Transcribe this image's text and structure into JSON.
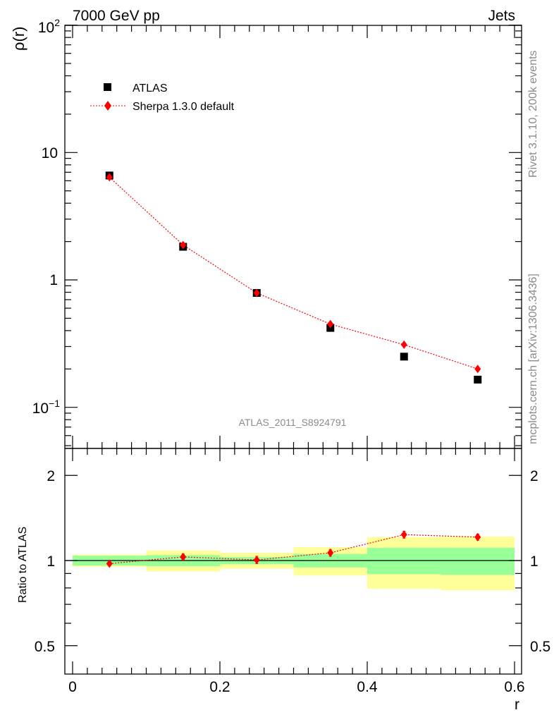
{
  "header": {
    "left": "7000 GeV pp",
    "right": "Jets"
  },
  "side_text": {
    "rivet": "Rivet 3.1.10,  200k events",
    "mcplots": "mcplots.cern.ch [arXiv:1306.3436]"
  },
  "watermark": "ATLAS_2011_S8924791",
  "colors": {
    "data": "#000000",
    "mc": "#ff0000",
    "band_inner": "#99ff99",
    "band_outer": "#ffff99"
  },
  "chart_data": [
    {
      "type": "scatter",
      "panel": "main",
      "ylabel": "ρ(r)",
      "yscale": "log",
      "ylim": [
        0.05,
        100
      ],
      "xlim": [
        -0.01,
        0.6
      ],
      "y_tick_labels": [
        {
          "value": 0.1,
          "label": "10",
          "sup": "−1"
        },
        {
          "value": 1,
          "label": "1",
          "sup": ""
        },
        {
          "value": 10,
          "label": "10",
          "sup": ""
        },
        {
          "value": 100,
          "label": "10",
          "sup": "2"
        }
      ],
      "legend": {
        "position": "top-left",
        "entries": [
          "ATLAS",
          "Sherpa 1.3.0 default"
        ]
      },
      "series": [
        {
          "name": "ATLAS",
          "style": "square",
          "x": [
            0.05,
            0.15,
            0.25,
            0.35,
            0.45,
            0.55
          ],
          "values": [
            6.6,
            1.82,
            0.79,
            0.42,
            0.25,
            0.165
          ]
        },
        {
          "name": "Sherpa 1.3.0 default",
          "style": "diamond-dotted-line",
          "x": [
            0.05,
            0.15,
            0.25,
            0.35,
            0.45,
            0.55
          ],
          "values": [
            6.4,
            1.88,
            0.79,
            0.45,
            0.31,
            0.2
          ]
        }
      ]
    },
    {
      "type": "line",
      "panel": "ratio",
      "ylabel": "Ratio to ATLAS",
      "xlabel": "r",
      "yscale": "log",
      "ylim": [
        0.43,
        2.35
      ],
      "xlim": [
        -0.01,
        0.6
      ],
      "x_ticks": [
        0,
        0.2,
        0.4,
        0.6
      ],
      "x_tick_labels": [
        "0",
        "0.2",
        "0.4",
        "0.6"
      ],
      "y_ticks": [
        0.5,
        1,
        2
      ],
      "y_tick_labels": [
        "0.5",
        "1",
        "2"
      ],
      "bins": [
        [
          0.0,
          0.1
        ],
        [
          0.1,
          0.2
        ],
        [
          0.2,
          0.3
        ],
        [
          0.3,
          0.4
        ],
        [
          0.4,
          0.5
        ],
        [
          0.5,
          0.6
        ]
      ],
      "band_inner": [
        [
          0.96,
          1.04
        ],
        [
          0.955,
          1.045
        ],
        [
          0.97,
          1.03
        ],
        [
          0.945,
          1.055
        ],
        [
          0.895,
          1.11
        ],
        [
          0.89,
          1.11
        ]
      ],
      "band_outer": [
        [
          0.95,
          1.05
        ],
        [
          0.915,
          1.085
        ],
        [
          0.935,
          1.065
        ],
        [
          0.885,
          1.115
        ],
        [
          0.795,
          1.21
        ],
        [
          0.785,
          1.215
        ]
      ],
      "series": [
        {
          "name": "Sherpa 1.3.0 default",
          "x": [
            0.05,
            0.15,
            0.25,
            0.35,
            0.45,
            0.55
          ],
          "values": [
            0.975,
            1.03,
            1.005,
            1.065,
            1.235,
            1.21
          ],
          "errors": [
            0.012,
            0.025,
            0.03,
            0.03,
            0.035,
            0.03
          ]
        }
      ]
    }
  ]
}
